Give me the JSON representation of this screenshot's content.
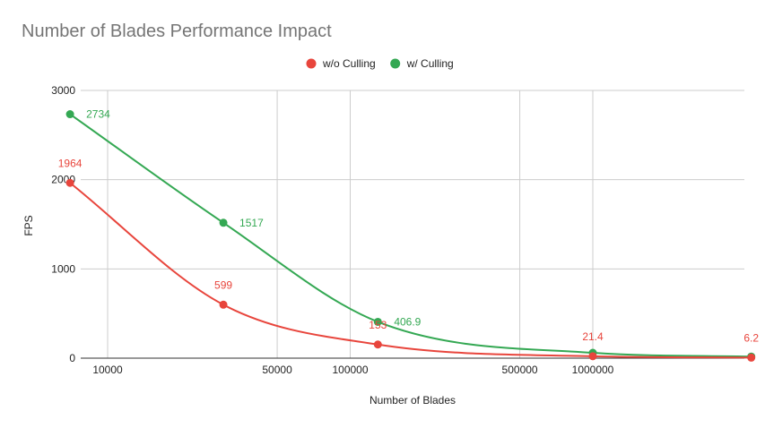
{
  "chart_data": {
    "type": "line",
    "title": "Number of Blades Performance Impact",
    "xlabel": "Number of Blades",
    "ylabel": "FPS",
    "x_scale": "log",
    "x": [
      7000,
      30000,
      130000,
      1000000,
      4500000
    ],
    "x_ticks": [
      10000,
      50000,
      100000,
      500000,
      1000000
    ],
    "ylim": [
      0,
      3000
    ],
    "y_ticks": [
      0,
      1000,
      2000,
      3000
    ],
    "grid": true,
    "legend_position": "top",
    "series": [
      {
        "name": "w/o Culling",
        "color": "#e8453c",
        "values": [
          1964,
          599,
          153,
          21.4,
          6.2
        ],
        "labels": [
          "1964",
          "599",
          "153",
          "21.4",
          "6.2"
        ]
      },
      {
        "name": "w/ Culling",
        "color": "#34a853",
        "values": [
          2734,
          1517,
          406.9,
          60,
          18
        ],
        "labels": [
          "2734",
          "1517",
          "406.9",
          "",
          ""
        ]
      }
    ]
  }
}
